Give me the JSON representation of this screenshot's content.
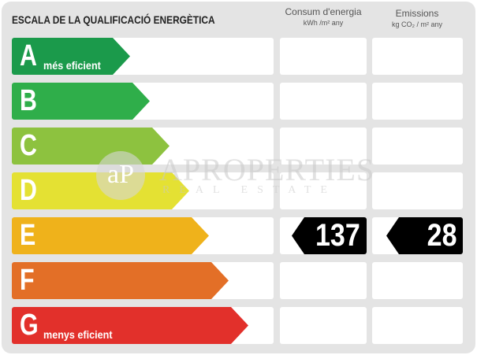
{
  "title": "ESCALA DE LA QUALIFICACIÓ ENERGÈTICA",
  "columns": [
    {
      "label": "Consum d'energia",
      "unit": "kWh /m² any"
    },
    {
      "label": "Emissions",
      "unit": "kg CO₂ / m² any"
    }
  ],
  "ratings": [
    {
      "letter": "A",
      "sub": "més eficient",
      "color": "#1b9a4b"
    },
    {
      "letter": "B",
      "sub": "",
      "color": "#2fae4a"
    },
    {
      "letter": "C",
      "sub": "",
      "color": "#8dc23f"
    },
    {
      "letter": "D",
      "sub": "",
      "color": "#e4e133"
    },
    {
      "letter": "E",
      "sub": "",
      "color": "#efb21b"
    },
    {
      "letter": "F",
      "sub": "",
      "color": "#e36f27"
    },
    {
      "letter": "G",
      "sub": "menys eficient",
      "color": "#e2302b"
    }
  ],
  "current": {
    "rating": "E",
    "consumption": "137",
    "emissions": "28"
  },
  "watermark": {
    "logo": "aP",
    "name": "APROPERTIES",
    "tagline": "REAL ESTATE"
  }
}
